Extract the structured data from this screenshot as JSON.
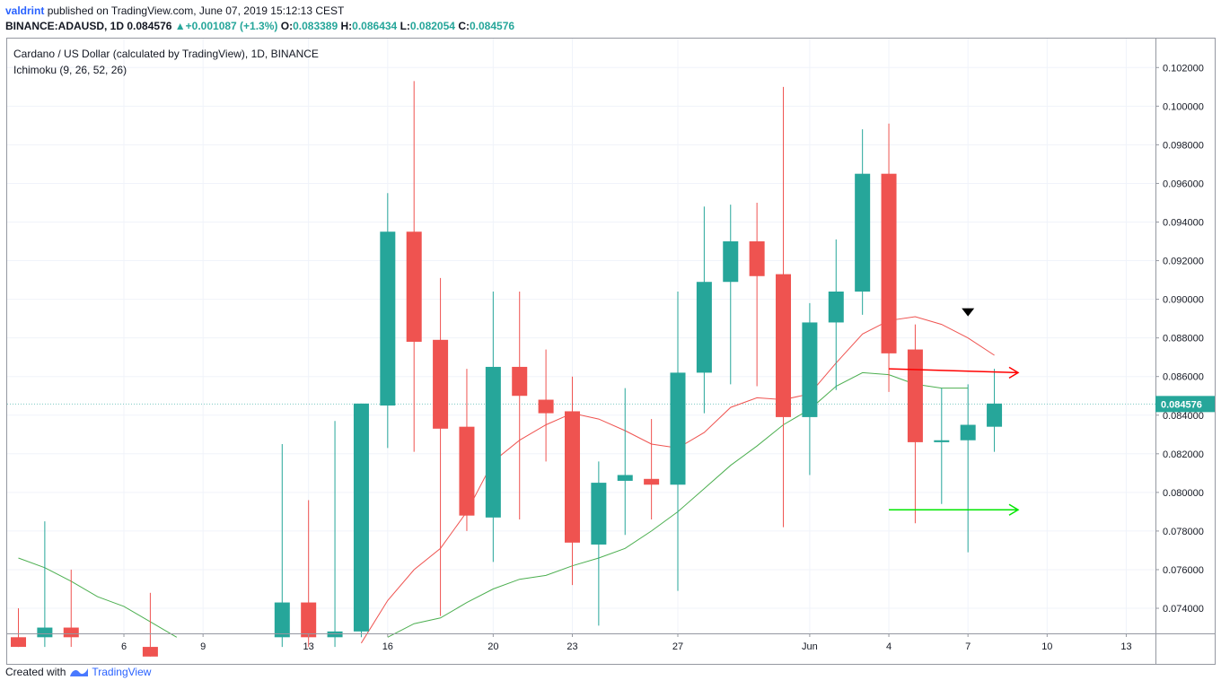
{
  "header": {
    "user": "valdrint",
    "published_text": "published on TradingView.com, June 07, 2019 15:12:13 CEST",
    "symbol": "BINANCE:ADAUSD, 1D",
    "last": "0.084576",
    "change_icon": "triangle-up-icon",
    "change": "+0.001087 (+1.3%)",
    "o_label": "O:",
    "o": "0.083389",
    "h_label": "H:",
    "h": "0.086434",
    "l_label": "L:",
    "l": "0.082054",
    "c_label": "C:",
    "c": "0.084576"
  },
  "footer": {
    "created_with": "Created with",
    "brand": "TradingView",
    "logo_icon": "tradingview-logo-icon"
  },
  "colors": {
    "up": "#26a69a",
    "down": "#ef5350",
    "tenkan": "#ef5350",
    "kijun": "#4caf50",
    "arrow_red": "#ff0000",
    "arrow_green": "#00e600",
    "marker": "#000000"
  },
  "chart_data": {
    "type": "candlestick",
    "title": "Cardano / US Dollar (calculated by TradingView), 1D, BINANCE",
    "indicator": "Ichimoku (9, 26, 52, 26)",
    "ylim": [
      0.0727,
      0.1035
    ],
    "y_ticks": [
      "0.074000",
      "0.076000",
      "0.078000",
      "0.080000",
      "0.082000",
      "0.084000",
      "0.086000",
      "0.088000",
      "0.090000",
      "0.092000",
      "0.094000",
      "0.096000",
      "0.098000",
      "0.100000",
      "0.102000"
    ],
    "last_price_label": "0.084576",
    "x_ticks": [
      {
        "label": "6",
        "i": 4
      },
      {
        "label": "9",
        "i": 7
      },
      {
        "label": "13",
        "i": 11
      },
      {
        "label": "16",
        "i": 14
      },
      {
        "label": "20",
        "i": 18
      },
      {
        "label": "23",
        "i": 21
      },
      {
        "label": "27",
        "i": 25
      },
      {
        "label": "Jun",
        "i": 30
      },
      {
        "label": "4",
        "i": 33
      },
      {
        "label": "7",
        "i": 36
      },
      {
        "label": "10",
        "i": 39
      },
      {
        "label": "13",
        "i": 42
      }
    ],
    "candles": [
      {
        "i": 0,
        "o": 0.0725,
        "h": 0.074,
        "l": 0.072,
        "c": 0.072
      },
      {
        "i": 1,
        "o": 0.0725,
        "h": 0.0785,
        "l": 0.072,
        "c": 0.073
      },
      {
        "i": 2,
        "o": 0.073,
        "h": 0.076,
        "l": 0.072,
        "c": 0.0725
      },
      {
        "i": 5,
        "o": 0.072,
        "h": 0.0748,
        "l": 0.0715,
        "c": 0.0715
      },
      {
        "i": 10,
        "o": 0.0725,
        "h": 0.0825,
        "l": 0.072,
        "c": 0.0743
      },
      {
        "i": 11,
        "o": 0.0743,
        "h": 0.0796,
        "l": 0.072,
        "c": 0.0725
      },
      {
        "i": 12,
        "o": 0.0725,
        "h": 0.0837,
        "l": 0.072,
        "c": 0.0728
      },
      {
        "i": 13,
        "o": 0.0728,
        "h": 0.0846,
        "l": 0.0725,
        "c": 0.0846
      },
      {
        "i": 14,
        "o": 0.0845,
        "h": 0.0955,
        "l": 0.0823,
        "c": 0.0935
      },
      {
        "i": 15,
        "o": 0.0935,
        "h": 0.1013,
        "l": 0.0821,
        "c": 0.0878
      },
      {
        "i": 16,
        "o": 0.0879,
        "h": 0.0911,
        "l": 0.0736,
        "c": 0.0833
      },
      {
        "i": 17,
        "o": 0.0834,
        "h": 0.0864,
        "l": 0.078,
        "c": 0.0788
      },
      {
        "i": 18,
        "o": 0.0787,
        "h": 0.0904,
        "l": 0.0764,
        "c": 0.0865
      },
      {
        "i": 19,
        "o": 0.0865,
        "h": 0.0904,
        "l": 0.0786,
        "c": 0.085
      },
      {
        "i": 20,
        "o": 0.0848,
        "h": 0.0874,
        "l": 0.0816,
        "c": 0.0841
      },
      {
        "i": 21,
        "o": 0.0842,
        "h": 0.086,
        "l": 0.0752,
        "c": 0.0774
      },
      {
        "i": 22,
        "o": 0.0773,
        "h": 0.0816,
        "l": 0.0731,
        "c": 0.0805
      },
      {
        "i": 23,
        "o": 0.0806,
        "h": 0.0854,
        "l": 0.0778,
        "c": 0.0809
      },
      {
        "i": 24,
        "o": 0.0807,
        "h": 0.0838,
        "l": 0.0786,
        "c": 0.0804
      },
      {
        "i": 25,
        "o": 0.0804,
        "h": 0.0904,
        "l": 0.0749,
        "c": 0.0862
      },
      {
        "i": 26,
        "o": 0.0862,
        "h": 0.0948,
        "l": 0.0841,
        "c": 0.0909
      },
      {
        "i": 27,
        "o": 0.0909,
        "h": 0.0949,
        "l": 0.0856,
        "c": 0.093
      },
      {
        "i": 28,
        "o": 0.093,
        "h": 0.095,
        "l": 0.0855,
        "c": 0.0912
      },
      {
        "i": 29,
        "o": 0.0913,
        "h": 0.101,
        "l": 0.0782,
        "c": 0.0839
      },
      {
        "i": 30,
        "o": 0.0839,
        "h": 0.0898,
        "l": 0.0809,
        "c": 0.0888
      },
      {
        "i": 31,
        "o": 0.0888,
        "h": 0.0931,
        "l": 0.0853,
        "c": 0.0904
      },
      {
        "i": 32,
        "o": 0.0904,
        "h": 0.0988,
        "l": 0.0892,
        "c": 0.0965
      },
      {
        "i": 33,
        "o": 0.0965,
        "h": 0.0991,
        "l": 0.0852,
        "c": 0.0872
      },
      {
        "i": 34,
        "o": 0.0874,
        "h": 0.0887,
        "l": 0.0784,
        "c": 0.0826
      },
      {
        "i": 35,
        "o": 0.0826,
        "h": 0.0854,
        "l": 0.0794,
        "c": 0.0827
      },
      {
        "i": 36,
        "o": 0.0827,
        "h": 0.0856,
        "l": 0.0769,
        "c": 0.0835
      },
      {
        "i": 37,
        "o": 0.0834,
        "h": 0.0864,
        "l": 0.0821,
        "c": 0.0846
      }
    ],
    "tenkan": [
      {
        "i": 13,
        "v": 0.0722
      },
      {
        "i": 14,
        "v": 0.0744
      },
      {
        "i": 15,
        "v": 0.076
      },
      {
        "i": 16,
        "v": 0.0771
      },
      {
        "i": 17,
        "v": 0.079
      },
      {
        "i": 18,
        "v": 0.0816
      },
      {
        "i": 19,
        "v": 0.0827
      },
      {
        "i": 20,
        "v": 0.0835
      },
      {
        "i": 21,
        "v": 0.0841
      },
      {
        "i": 22,
        "v": 0.0838
      },
      {
        "i": 23,
        "v": 0.0832
      },
      {
        "i": 24,
        "v": 0.0825
      },
      {
        "i": 25,
        "v": 0.0823
      },
      {
        "i": 26,
        "v": 0.0831
      },
      {
        "i": 27,
        "v": 0.0844
      },
      {
        "i": 28,
        "v": 0.0849
      },
      {
        "i": 29,
        "v": 0.0848
      },
      {
        "i": 30,
        "v": 0.0851
      },
      {
        "i": 31,
        "v": 0.0867
      },
      {
        "i": 32,
        "v": 0.0882
      },
      {
        "i": 33,
        "v": 0.0889
      },
      {
        "i": 34,
        "v": 0.0891
      },
      {
        "i": 35,
        "v": 0.0887
      },
      {
        "i": 36,
        "v": 0.088
      },
      {
        "i": 37,
        "v": 0.0871
      }
    ],
    "kijun": [
      {
        "i": 0,
        "v": 0.0766
      },
      {
        "i": 1,
        "v": 0.0761
      },
      {
        "i": 2,
        "v": 0.0754
      },
      {
        "i": 3,
        "v": 0.0746
      },
      {
        "i": 4,
        "v": 0.0741
      },
      {
        "i": 5,
        "v": 0.0733
      },
      {
        "i": 6,
        "v": 0.0725
      },
      {
        "i": 14,
        "v": 0.0725
      },
      {
        "i": 15,
        "v": 0.0732
      },
      {
        "i": 16,
        "v": 0.0735
      },
      {
        "i": 17,
        "v": 0.0743
      },
      {
        "i": 18,
        "v": 0.075
      },
      {
        "i": 19,
        "v": 0.0755
      },
      {
        "i": 20,
        "v": 0.0757
      },
      {
        "i": 21,
        "v": 0.0762
      },
      {
        "i": 22,
        "v": 0.0766
      },
      {
        "i": 23,
        "v": 0.0771
      },
      {
        "i": 24,
        "v": 0.078
      },
      {
        "i": 25,
        "v": 0.079
      },
      {
        "i": 26,
        "v": 0.0802
      },
      {
        "i": 27,
        "v": 0.0814
      },
      {
        "i": 28,
        "v": 0.0824
      },
      {
        "i": 29,
        "v": 0.0835
      },
      {
        "i": 30,
        "v": 0.0843
      },
      {
        "i": 31,
        "v": 0.0855
      },
      {
        "i": 32,
        "v": 0.0862
      },
      {
        "i": 33,
        "v": 0.0861
      },
      {
        "i": 34,
        "v": 0.0856
      },
      {
        "i": 35,
        "v": 0.0854
      },
      {
        "i": 36,
        "v": 0.0854
      }
    ],
    "annotations": [
      {
        "type": "arrow",
        "color": "#ff0000",
        "from": {
          "i": 33,
          "v": 0.0864
        },
        "to": {
          "i": 37.9,
          "v": 0.0862
        }
      },
      {
        "type": "arrow",
        "color": "#00e600",
        "from": {
          "i": 33,
          "v": 0.0791
        },
        "to": {
          "i": 37.9,
          "v": 0.0791
        }
      },
      {
        "type": "marker-down",
        "color": "#000000",
        "at": {
          "i": 36,
          "v": 0.0893
        }
      }
    ]
  }
}
